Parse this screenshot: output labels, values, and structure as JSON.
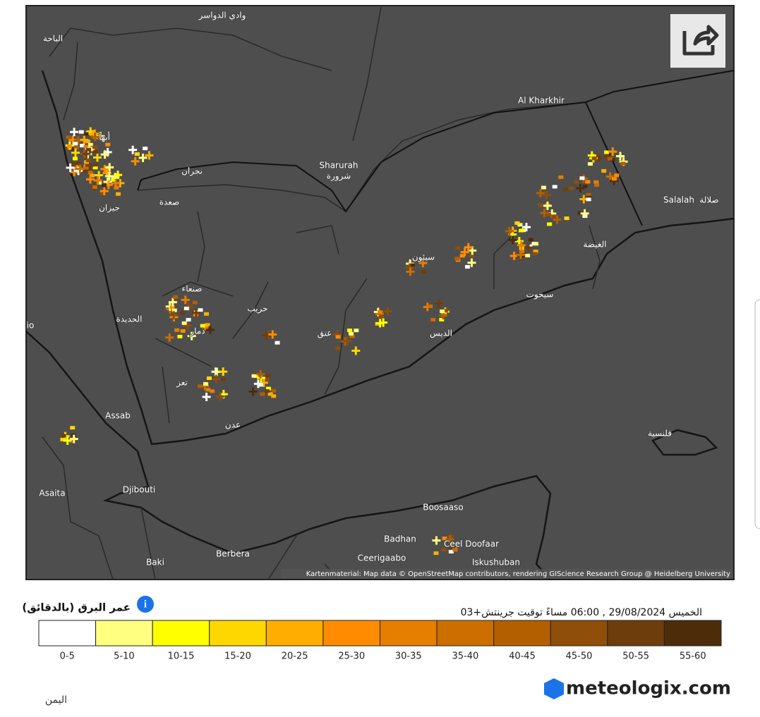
{
  "map": {
    "places": [
      "وادي الدواسر",
      "الباحة",
      "أبها",
      "نجران",
      "صعدة",
      "جيزان",
      "Sharurah",
      "شرورة",
      "Al Kharkhir",
      "Salalah",
      "صلالة",
      "الغيضة",
      "سيئون",
      "صنعاء",
      "حريب",
      "الحديدة",
      "ذمار",
      "عتق",
      "الديس",
      "سيحوت",
      "تعز",
      "Assab",
      "عدن",
      "قلنسية",
      "Asaita",
      "Djibouti",
      "Boosaaso",
      "Badhan",
      "Ceel Doofaar",
      "Ceerigaabo",
      "Iskushuban",
      "Berbera",
      "Baki",
      "io"
    ],
    "attribution": "Kartenmaterial: Map data © OpenStreetMap contributors, rendering GIScience Research Group @ Heidelberg University"
  },
  "legend": {
    "title": "عمر البرق (بالدقائق)",
    "timestamp": "الخميس 29/08/2024 , 06:00 مساءً توقيت جرينتش+03",
    "classes": [
      {
        "label": "0-5",
        "color": "#ffffff"
      },
      {
        "label": "5-10",
        "color": "#ffff80"
      },
      {
        "label": "10-15",
        "color": "#ffff00"
      },
      {
        "label": "15-20",
        "color": "#ffd700"
      },
      {
        "label": "20-25",
        "color": "#ffae00"
      },
      {
        "label": "25-30",
        "color": "#ff8c00"
      },
      {
        "label": "30-35",
        "color": "#e67e00"
      },
      {
        "label": "35-40",
        "color": "#cc6e00"
      },
      {
        "label": "40-45",
        "color": "#b35f00"
      },
      {
        "label": "45-50",
        "color": "#8f4e0a"
      },
      {
        "label": "50-55",
        "color": "#6e3d0c"
      },
      {
        "label": "55-60",
        "color": "#4d2c0a"
      }
    ]
  },
  "footer": {
    "region": "اليمن",
    "brand": "meteologix.com"
  }
}
